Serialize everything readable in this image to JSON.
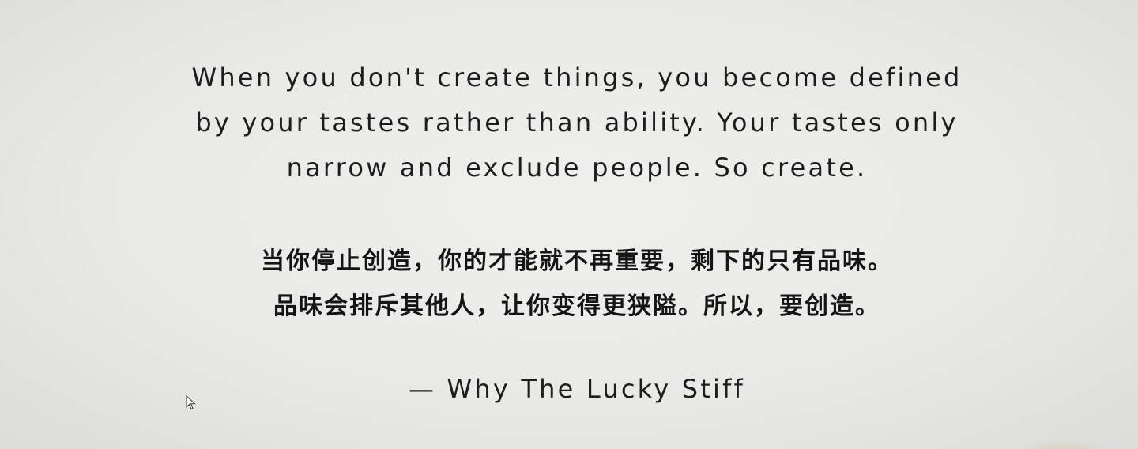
{
  "quote": {
    "english_lines": [
      "When you don't create things, you become defined",
      "by your tastes rather than ability. Your tastes only",
      "narrow and exclude people. So create."
    ],
    "chinese_lines": [
      "当你停止创造，你的才能就不再重要，剩下的只有品味。",
      "品味会排斥其他人，让你变得更狭隘。所以，要创造。"
    ],
    "attribution": "— Why The Lucky Stiff"
  },
  "icons": {
    "cursor": "mouse-pointer-icon"
  }
}
